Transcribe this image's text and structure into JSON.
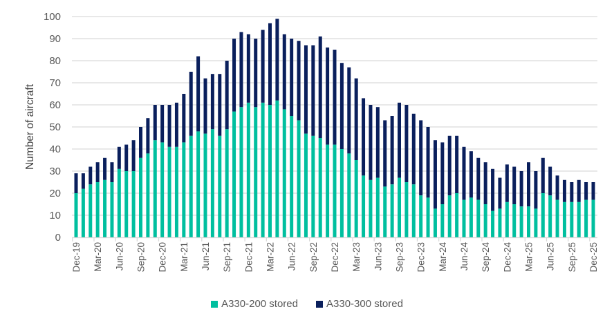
{
  "chart_data": {
    "type": "bar",
    "stacked": true,
    "title": "",
    "xlabel": "",
    "ylabel": "Number of aircraft",
    "ylim": [
      0,
      100
    ],
    "yticks": [
      0,
      10,
      20,
      30,
      40,
      50,
      60,
      70,
      80,
      90,
      100
    ],
    "grid": true,
    "legend_position": "bottom",
    "x_start": "Dec-19",
    "x_end": "Dec-25",
    "x_tick_labels": [
      "Dec-19",
      "Mar-20",
      "Jun-20",
      "Sep-20",
      "Dec-20",
      "Mar-21",
      "Jun-21",
      "Sep-21",
      "Dec-21",
      "Mar-22",
      "Jun-22",
      "Sep-22",
      "Dec-22",
      "Mar-23",
      "Jun-23",
      "Sep-23",
      "Dec-23",
      "Mar-24",
      "Jun-24",
      "Sep-24",
      "Dec-24",
      "Mar-25",
      "Jun-25",
      "Sep-25",
      "Dec-25"
    ],
    "x_tick_every": 3,
    "series": [
      {
        "name": "A330-200 stored",
        "color": "#00BF9F",
        "values": [
          20,
          22,
          24,
          25,
          26,
          25,
          31,
          30,
          30,
          36,
          38,
          44,
          43,
          41,
          41,
          43,
          46,
          48,
          47,
          49,
          46,
          49,
          57,
          59,
          61,
          59,
          61,
          60,
          62,
          58,
          55,
          53,
          47,
          46,
          45,
          42,
          42,
          40,
          38,
          35,
          28,
          26,
          27,
          23,
          24,
          27,
          25,
          24,
          19,
          18,
          13,
          15,
          19,
          20,
          17,
          18,
          17,
          15,
          12,
          13,
          16,
          15,
          14,
          14,
          13,
          20,
          19,
          17,
          16,
          16,
          16,
          17,
          17
        ]
      },
      {
        "name": "A330-300 stored",
        "color": "#0A1F5C",
        "values": [
          9,
          7,
          8,
          9,
          10,
          9,
          10,
          12,
          14,
          14,
          16,
          16,
          17,
          19,
          20,
          22,
          29,
          34,
          25,
          25,
          28,
          31,
          33,
          34,
          31,
          31,
          33,
          37,
          37,
          34,
          35,
          36,
          40,
          41,
          46,
          44,
          43,
          39,
          39,
          37,
          35,
          34,
          32,
          30,
          31,
          34,
          35,
          32,
          34,
          32,
          31,
          28,
          27,
          26,
          24,
          21,
          19,
          19,
          19,
          14,
          17,
          17,
          16,
          20,
          17,
          16,
          13,
          11,
          10,
          9,
          10,
          8,
          8
        ]
      }
    ]
  }
}
